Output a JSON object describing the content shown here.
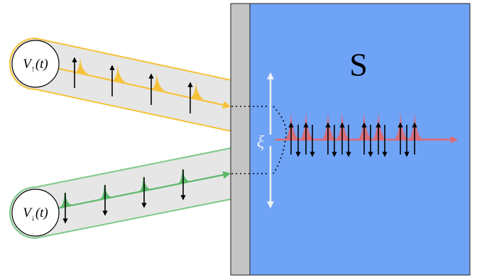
{
  "source_up": {
    "base": "V",
    "sub": "↑",
    "arg": "(t)"
  },
  "source_down": {
    "base": "V",
    "sub": "↓",
    "arg": "(t)"
  },
  "superconductor_label": "S",
  "coherence_label": "ξ"
}
